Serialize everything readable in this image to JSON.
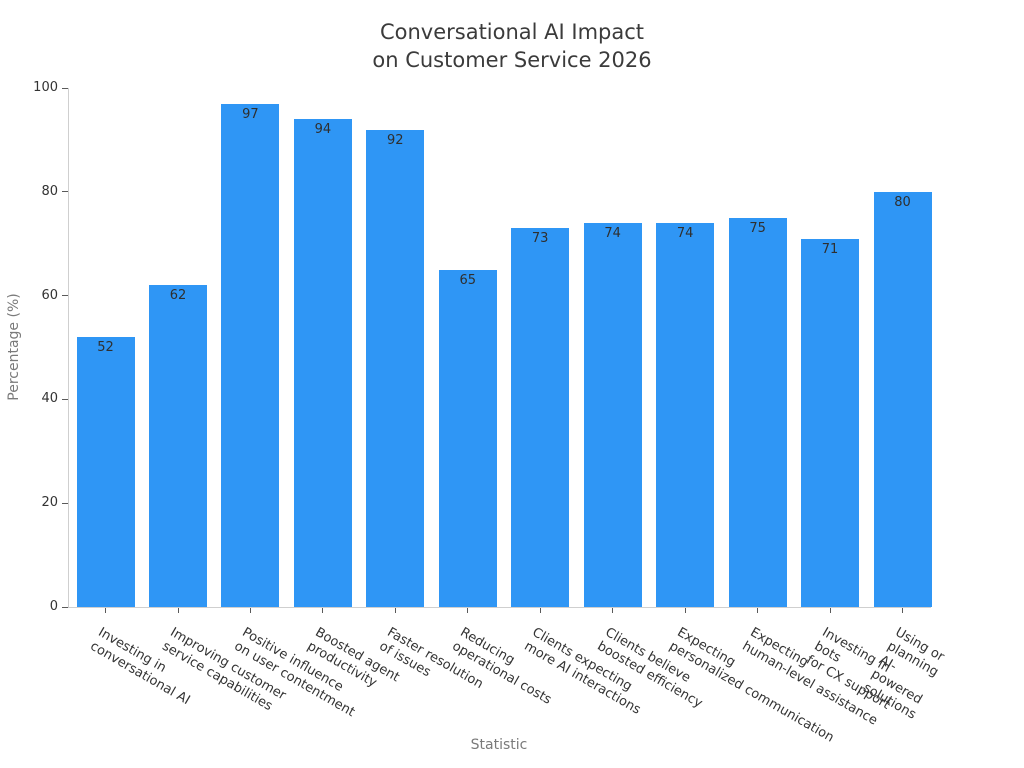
{
  "chart_data": {
    "type": "bar",
    "title": "Conversational AI Impact\non Customer Service 2026",
    "xlabel": "Statistic",
    "ylabel": "Percentage (%)",
    "ylim": [
      0,
      100
    ],
    "yticks": [
      0,
      20,
      40,
      60,
      80,
      100
    ],
    "categories": [
      "Investing in\nconversational AI",
      "Improving customer\nservice capabilities",
      "Positive influence\non user contentment",
      "Boosted agent\nproductivity",
      "Faster resolution\nof issues",
      "Reducing\noperational costs",
      "Clients expecting\nmore AI interactions",
      "Clients believe\nboosted efficiency",
      "Expecting\npersonalized communication",
      "Expecting\nhuman-level assistance",
      "Investing in bots\nfor CX support",
      "Using or planning\nAI-powered solutions"
    ],
    "values": [
      52,
      62,
      97,
      94,
      92,
      65,
      73,
      74,
      74,
      75,
      71,
      80
    ],
    "bar_value_labels": [
      "52",
      "62",
      "97",
      "94",
      "92",
      "65",
      "73",
      "74",
      "74",
      "75",
      "71",
      "80"
    ],
    "legend": null,
    "grid": false,
    "colors": {
      "bar": "#2F96F5",
      "title_text": "#3b3b3b",
      "tick_text": "#333333",
      "axis_title_text": "#7a7a7a",
      "spine": "#cfcfcf",
      "tick_mark": "#5a5a5a"
    }
  }
}
